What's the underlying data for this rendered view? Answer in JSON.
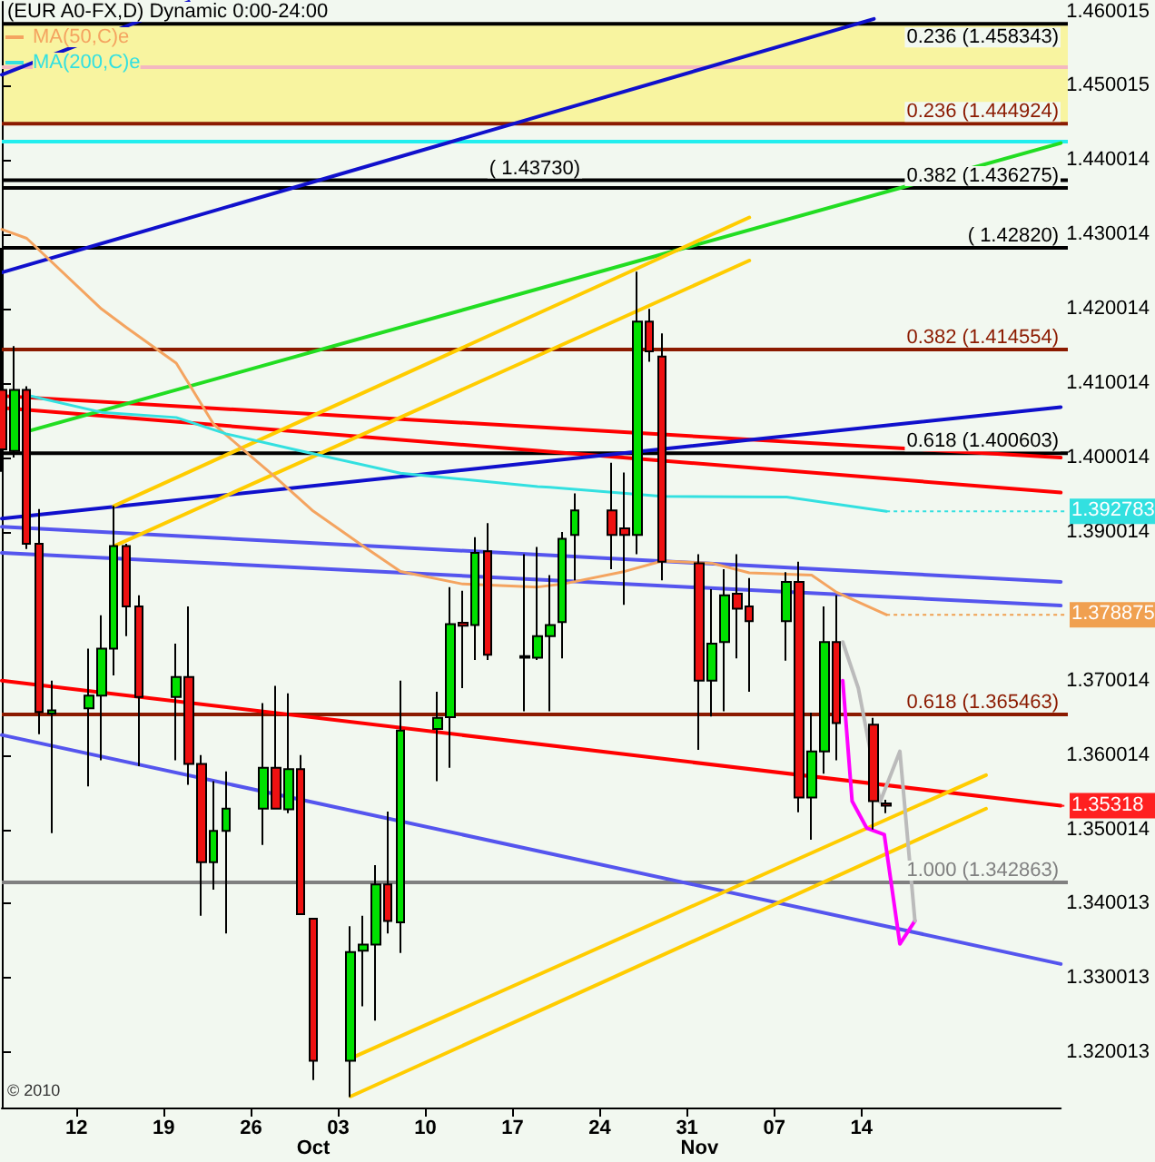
{
  "chart_data": {
    "type": "candlestick",
    "title": "(EUR A0-FX,D) Dynamic 0:00-24:00",
    "x": [
      "2010-09-06",
      "2010-09-07",
      "2010-09-08",
      "2010-09-09",
      "2010-09-10",
      "2010-09-13",
      "2010-09-14",
      "2010-09-15",
      "2010-09-16",
      "2010-09-17",
      "2010-09-20",
      "2010-09-21",
      "2010-09-22",
      "2010-09-23",
      "2010-09-24",
      "2010-09-27",
      "2010-09-28",
      "2010-09-29",
      "2010-09-30",
      "2010-10-01",
      "2010-10-04",
      "2010-10-05",
      "2010-10-06",
      "2010-10-07",
      "2010-10-08",
      "2010-10-11",
      "2010-10-12",
      "2010-10-13",
      "2010-10-14",
      "2010-10-15",
      "2010-10-18",
      "2010-10-19",
      "2010-10-20",
      "2010-10-21",
      "2010-10-22",
      "2010-10-25",
      "2010-10-26",
      "2010-10-27",
      "2010-10-28",
      "2010-10-29",
      "2010-11-01",
      "2010-11-02",
      "2010-11-03",
      "2010-11-04",
      "2010-11-05",
      "2010-11-08",
      "2010-11-09",
      "2010-11-10",
      "2010-11-11",
      "2010-11-12",
      "2010-11-15",
      "2010-11-16"
    ],
    "ohlc": [
      [
        1.4091,
        1.4282,
        1.3981,
        1.4011
      ],
      [
        1.4009,
        1.415,
        1.4,
        1.4091
      ],
      [
        1.4091,
        1.4096,
        1.3877,
        1.3884
      ],
      [
        1.3884,
        1.3931,
        1.3628,
        1.3658
      ],
      [
        1.3656,
        1.37,
        1.3495,
        1.366
      ],
      [
        1.3663,
        1.3743,
        1.3558,
        1.368
      ],
      [
        1.368,
        1.3788,
        1.3593,
        1.3743
      ],
      [
        1.3743,
        1.3935,
        1.3707,
        1.3881
      ],
      [
        1.3881,
        1.3884,
        1.376,
        1.38
      ],
      [
        1.38,
        1.3815,
        1.3585,
        1.3678
      ],
      [
        1.3678,
        1.375,
        1.3593,
        1.3705
      ],
      [
        1.3705,
        1.38,
        1.356,
        1.3588
      ],
      [
        1.3588,
        1.36,
        1.3384,
        1.3456
      ],
      [
        1.3456,
        1.3565,
        1.3419,
        1.3498
      ],
      [
        1.3498,
        1.3578,
        1.336,
        1.3528
      ],
      [
        1.3528,
        1.367,
        1.3479,
        1.3583
      ],
      [
        1.3583,
        1.3693,
        1.3528,
        1.3528
      ],
      [
        1.3527,
        1.3683,
        1.3522,
        1.3581
      ],
      [
        1.3581,
        1.36,
        1.3386,
        1.3386
      ],
      [
        1.338,
        1.338,
        1.3163,
        1.3189
      ],
      [
        1.3189,
        1.337,
        1.314,
        1.3335
      ],
      [
        1.3337,
        1.3384,
        1.3262,
        1.3345
      ],
      [
        1.3345,
        1.3452,
        1.3243,
        1.3426
      ],
      [
        1.3426,
        1.3524,
        1.336,
        1.3377
      ],
      [
        1.3375,
        1.37,
        1.3334,
        1.3633
      ],
      [
        1.3635,
        1.3685,
        1.3565,
        1.365
      ],
      [
        1.3651,
        1.3826,
        1.3583,
        1.3776
      ],
      [
        1.3778,
        1.3821,
        1.369,
        1.3774
      ],
      [
        1.3775,
        1.3893,
        1.3728,
        1.3872
      ],
      [
        1.3874,
        1.3912,
        1.3728,
        1.3735
      ],
      [
        1.3733,
        1.387,
        1.3659,
        1.3731
      ],
      [
        1.3731,
        1.388,
        1.3728,
        1.376
      ],
      [
        1.376,
        1.3842,
        1.3659,
        1.3775
      ],
      [
        1.3779,
        1.39,
        1.373,
        1.3891
      ],
      [
        1.3896,
        1.3952,
        1.3835,
        1.3929
      ],
      [
        1.3929,
        1.3993,
        1.385,
        1.3896
      ],
      [
        1.3905,
        1.398,
        1.3802,
        1.3896
      ],
      [
        1.3896,
        1.425,
        1.387,
        1.4183
      ],
      [
        1.4183,
        1.42,
        1.4129,
        1.4143
      ],
      [
        1.4136,
        1.4167,
        1.3835,
        1.386
      ],
      [
        1.3858,
        1.387,
        1.3607,
        1.37
      ],
      [
        1.37,
        1.3823,
        1.3652,
        1.375
      ],
      [
        1.3752,
        1.385,
        1.3659,
        1.3815
      ],
      [
        1.3817,
        1.387,
        1.373,
        1.3797
      ],
      [
        1.38,
        1.3838,
        1.3685,
        1.378
      ],
      [
        1.378,
        1.3846,
        1.3727,
        1.3833
      ],
      [
        1.3833,
        1.386,
        1.3523,
        1.3543
      ],
      [
        1.3543,
        1.3657,
        1.3486,
        1.3605
      ],
      [
        1.3605,
        1.38,
        1.3575,
        1.3752
      ],
      [
        1.3752,
        1.3815,
        1.3593,
        1.3643
      ],
      [
        1.3641,
        1.365,
        1.35,
        1.3538
      ],
      [
        1.3535,
        1.354,
        1.3522,
        1.3532
      ]
    ],
    "xlim": [
      "2010-09-06",
      "2010-11-30"
    ],
    "xticks": [
      {
        "value": "2010-09-12",
        "label": "12"
      },
      {
        "value": "2010-09-19",
        "label": "19"
      },
      {
        "value": "2010-09-26",
        "label": "26"
      },
      {
        "value": "2010-10-03",
        "label": "03"
      },
      {
        "value": "2010-10-10",
        "label": "10"
      },
      {
        "value": "2010-10-17",
        "label": "17"
      },
      {
        "value": "2010-10-24",
        "label": "24"
      },
      {
        "value": "2010-10-31",
        "label": "31"
      },
      {
        "value": "2010-11-07",
        "label": "07"
      },
      {
        "value": "2010-11-14",
        "label": "14"
      }
    ],
    "ylim": [
      1.3126,
      1.4613
    ],
    "yticks": [
      1.320013,
      1.330013,
      1.340013,
      1.350014,
      1.360014,
      1.370014,
      1.390014,
      1.400014,
      1.410014,
      1.420014,
      1.430014,
      1.440014,
      1.450015,
      1.460015
    ],
    "series": [
      {
        "type": "line",
        "name": "MA(50,C)e",
        "color": "#f4a460",
        "x": [
          "2010-09-06",
          "2010-09-08",
          "2010-09-14",
          "2010-09-16",
          "2010-09-20",
          "2010-09-23",
          "2010-09-28",
          "2010-10-01",
          "2010-10-05",
          "2010-10-08",
          "2010-10-13",
          "2010-10-19",
          "2010-10-21",
          "2010-10-26",
          "2010-10-29",
          "2010-11-02",
          "2010-11-05",
          "2010-11-10",
          "2010-11-12",
          "2010-11-16"
        ],
        "values": [
          1.4307,
          1.4295,
          1.42,
          1.4175,
          1.4127,
          1.4045,
          1.3973,
          1.3928,
          1.3881,
          1.3847,
          1.383,
          1.3826,
          1.383,
          1.3847,
          1.3861,
          1.3858,
          1.3845,
          1.3842,
          1.3819,
          1.378875
        ]
      },
      {
        "type": "line",
        "name": "MA(200,C)e",
        "color": "#33e0e0",
        "x": [
          "2010-09-08",
          "2010-09-14",
          "2010-09-20",
          "2010-09-24",
          "2010-09-30",
          "2010-10-08",
          "2010-10-19",
          "2010-10-20",
          "2010-10-29",
          "2010-11-08",
          "2010-11-16"
        ],
        "values": [
          1.4084,
          1.4061,
          1.4054,
          1.4032,
          1.4009,
          1.3979,
          1.3961,
          1.396,
          1.3948,
          1.3947,
          1.392783
        ]
      },
      {
        "type": "line",
        "color": "#ff0000",
        "x": [
          "2010-09-06",
          "2010-11-30"
        ],
        "values": [
          1.4083,
          1.4
        ]
      },
      {
        "type": "line",
        "color": "#ff0000",
        "x": [
          "2010-09-06",
          "2010-11-30"
        ],
        "values": [
          1.4067,
          1.3953
        ]
      },
      {
        "type": "line",
        "color": "#ff0000",
        "x": [
          "2010-09-06",
          "2010-11-30"
        ],
        "values": [
          1.37,
          1.35318
        ]
      },
      {
        "type": "line",
        "color": "#22dd22",
        "x": [
          "2010-09-08",
          "2010-11-30"
        ],
        "values": [
          1.4035,
          1.4423
        ]
      },
      {
        "type": "line",
        "color": "#1010cc",
        "x": [
          "2010-09-06",
          "2010-11-15"
        ],
        "values": [
          1.4249,
          1.459
        ]
      },
      {
        "type": "line",
        "color": "#1010cc",
        "x": [
          "2010-09-06",
          "2010-09-21"
        ],
        "values": [
          1.4515,
          1.4613
        ]
      },
      {
        "type": "line",
        "color": "#1010cc",
        "x": [
          "2010-09-06",
          "2010-11-30"
        ],
        "values": [
          1.3918,
          1.4068
        ]
      },
      {
        "type": "line",
        "color": "#5555ee",
        "x": [
          "2010-09-06",
          "2010-11-30"
        ],
        "values": [
          1.3907,
          1.3833
        ]
      },
      {
        "type": "line",
        "color": "#5555ee",
        "x": [
          "2010-09-06",
          "2010-11-30"
        ],
        "values": [
          1.3872,
          1.3801
        ]
      },
      {
        "type": "line",
        "color": "#5555ee",
        "x": [
          "2010-09-06",
          "2010-11-30"
        ],
        "values": [
          1.3627,
          1.3319
        ]
      },
      {
        "type": "line",
        "color": "#ffcc00",
        "x": [
          "2010-09-15",
          "2010-11-05"
        ],
        "values": [
          1.3935,
          1.4323
        ]
      },
      {
        "type": "line",
        "color": "#ffcc00",
        "x": [
          "2010-09-15",
          "2010-11-05"
        ],
        "values": [
          1.3881,
          1.4265
        ]
      },
      {
        "type": "line",
        "color": "#ffcc00",
        "x": [
          "2010-10-04",
          "2010-11-24"
        ],
        "values": [
          1.3192,
          1.3573
        ]
      },
      {
        "type": "line",
        "color": "#ffcc00",
        "x": [
          "2010-10-04",
          "2010-11-24"
        ],
        "values": [
          1.3141,
          1.3528
        ]
      },
      {
        "type": "line",
        "color": "#ff00ff",
        "x": [
          "2010-11-12T12:00",
          "2010-11-13T06:00",
          "2010-11-14T10:00",
          "2010-11-15T20:00",
          "2010-11-17T02:00",
          "2010-11-18T07:00"
        ],
        "values": [
          1.37,
          1.3538,
          1.3502,
          1.3493,
          1.3346,
          1.3377
        ]
      },
      {
        "type": "line",
        "color": "#bbbbbb",
        "x": [
          "2010-11-12T12:00",
          "2010-11-13T18:00",
          "2010-11-15T12:00",
          "2010-11-17T02:00",
          "2010-11-18T07:00"
        ],
        "values": [
          1.3752,
          1.369,
          1.3537,
          1.3605,
          1.3377
        ]
      }
    ],
    "ref_lines": [
      {
        "axis": "y",
        "value": 1.458343,
        "label": "0.236 (1.458343)",
        "color": "#000000"
      },
      {
        "axis": "y",
        "value": 1.4525,
        "label": null,
        "color": "#f4b8c0"
      },
      {
        "axis": "y",
        "value": 1.444924,
        "label": "0.236 (1.444924)",
        "color": "#8b1a00"
      },
      {
        "axis": "y",
        "value": 1.4425,
        "label": null,
        "color": "#22eeee"
      },
      {
        "axis": "y",
        "value": 1.436275,
        "label": "0.382 (1.436275)",
        "color": "#000000"
      },
      {
        "axis": "y",
        "value": 1.4373,
        "label": "( 1.43730)",
        "color": "#000000"
      },
      {
        "axis": "y",
        "value": 1.4282,
        "label": "( 1.42820)",
        "color": "#000000"
      },
      {
        "axis": "y",
        "value": 1.414554,
        "label": "0.382 (1.414554)",
        "color": "#8b1a00"
      },
      {
        "axis": "y",
        "value": 1.400603,
        "label": "0.618 (1.400603)",
        "color": "#000000"
      },
      {
        "axis": "y",
        "value": 1.365463,
        "label": "0.618 (1.365463)",
        "color": "#8b1a00"
      },
      {
        "axis": "y",
        "value": 1.342863,
        "label": "1.000 (1.342863)",
        "color": "#808080"
      }
    ],
    "bands": [
      {
        "axis": "y",
        "from": 1.444924,
        "to": 1.458343,
        "label": null,
        "color": "#f8f4a0"
      }
    ],
    "annotations": [
      "© 2010",
      "Oct",
      "Nov",
      {
        "text": "1.392783",
        "x": "2010-11-16",
        "y": 1.392783
      },
      {
        "text": "1.378875",
        "x": "2010-11-16",
        "y": 1.378875
      },
      {
        "text": "1.35318",
        "x": "2010-11-30",
        "y": 1.35318
      }
    ],
    "legend": "top left",
    "grid": false,
    "marker": "none",
    "line_style": "solid"
  }
}
